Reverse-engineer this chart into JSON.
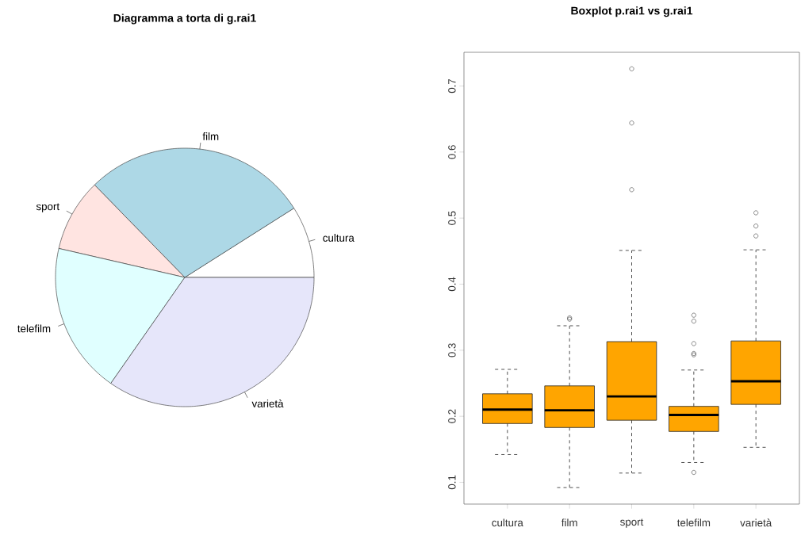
{
  "chart_data": [
    {
      "type": "pie",
      "title": "Diagramma a torta di g.rai1",
      "categories": [
        "cultura",
        "film",
        "sport",
        "telefilm",
        "varietà"
      ],
      "values": [
        9.0,
        28.3,
        9.1,
        18.9,
        34.7
      ],
      "colors": [
        "#ffffff",
        "#add8e6",
        "#ffe4e1",
        "#e0ffff",
        "#e6e6fa"
      ]
    },
    {
      "type": "box",
      "title": "Boxplot p.rai1 vs g.rai1",
      "categories": [
        "cultura",
        "film",
        "sport",
        "telefilm",
        "varietà"
      ],
      "color": "#ffa500",
      "ylim": [
        0.067,
        0.751
      ],
      "yticks": [
        0.1,
        0.2,
        0.3,
        0.4,
        0.5,
        0.6,
        0.7
      ],
      "boxes": [
        {
          "low": 0.142,
          "q1": 0.189,
          "median": 0.21,
          "q3": 0.234,
          "high": 0.271
        },
        {
          "low": 0.092,
          "q1": 0.183,
          "median": 0.209,
          "q3": 0.246,
          "high": 0.337,
          "outliers": [
            0.349,
            0.347
          ]
        },
        {
          "low": 0.114,
          "q1": 0.194,
          "median": 0.23,
          "q3": 0.313,
          "high": 0.451,
          "outliers": [
            0.543,
            0.644,
            0.726
          ]
        },
        {
          "low": 0.13,
          "q1": 0.177,
          "median": 0.202,
          "q3": 0.215,
          "high": 0.27,
          "outliers": [
            0.115,
            0.293,
            0.295,
            0.31,
            0.344,
            0.353
          ]
        },
        {
          "low": 0.153,
          "q1": 0.218,
          "median": 0.253,
          "q3": 0.314,
          "high": 0.452,
          "outliers": [
            0.473,
            0.488,
            0.508
          ]
        }
      ]
    }
  ]
}
